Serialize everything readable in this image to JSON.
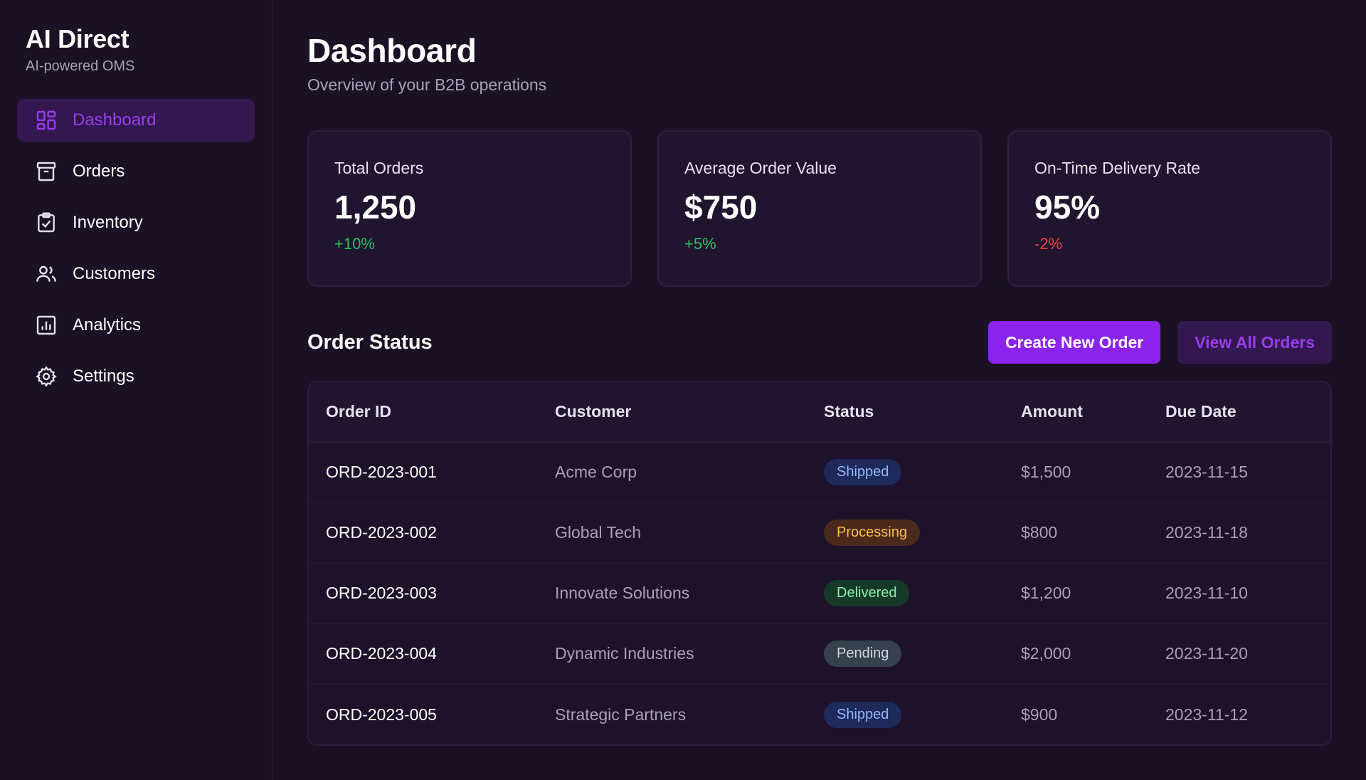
{
  "sidebar": {
    "brand_title": "AI Direct",
    "brand_subtitle": "AI-powered OMS",
    "active_color": "#9b3cf0",
    "items": [
      {
        "label": "Dashboard",
        "icon": "dashboard-icon",
        "active": true
      },
      {
        "label": "Orders",
        "icon": "archive-box-icon",
        "active": false
      },
      {
        "label": "Inventory",
        "icon": "clipboard-check-icon",
        "active": false
      },
      {
        "label": "Customers",
        "icon": "users-icon",
        "active": false
      },
      {
        "label": "Analytics",
        "icon": "bar-chart-icon",
        "active": false
      },
      {
        "label": "Settings",
        "icon": "gear-icon",
        "active": false
      }
    ]
  },
  "header": {
    "title": "Dashboard",
    "subtitle": "Overview of your B2B operations"
  },
  "stats": [
    {
      "label": "Total Orders",
      "value": "1,250",
      "delta": "+10%",
      "trend": "up"
    },
    {
      "label": "Average Order Value",
      "value": "$750",
      "delta": "+5%",
      "trend": "up"
    },
    {
      "label": "On-Time Delivery Rate",
      "value": "95%",
      "delta": "-2%",
      "trend": "down"
    }
  ],
  "orders_section": {
    "title": "Order Status",
    "create_button": "Create New Order",
    "view_all_button": "View All Orders",
    "columns": [
      "Order ID",
      "Customer",
      "Status",
      "Amount",
      "Due Date"
    ],
    "rows": [
      {
        "id": "ORD-2023-001",
        "customer": "Acme Corp",
        "status": "Shipped",
        "amount": "$1,500",
        "due": "2023-11-15"
      },
      {
        "id": "ORD-2023-002",
        "customer": "Global Tech",
        "status": "Processing",
        "amount": "$800",
        "due": "2023-11-18"
      },
      {
        "id": "ORD-2023-003",
        "customer": "Innovate Solutions",
        "status": "Delivered",
        "amount": "$1,200",
        "due": "2023-11-10"
      },
      {
        "id": "ORD-2023-004",
        "customer": "Dynamic Industries",
        "status": "Pending",
        "amount": "$2,000",
        "due": "2023-11-20"
      },
      {
        "id": "ORD-2023-005",
        "customer": "Strategic Partners",
        "status": "Shipped",
        "amount": "$900",
        "due": "2023-11-12"
      }
    ]
  },
  "colors": {
    "background": "#1a1124",
    "primary": "#8b23ee",
    "positive": "#22c55e",
    "negative": "#ef4444"
  }
}
